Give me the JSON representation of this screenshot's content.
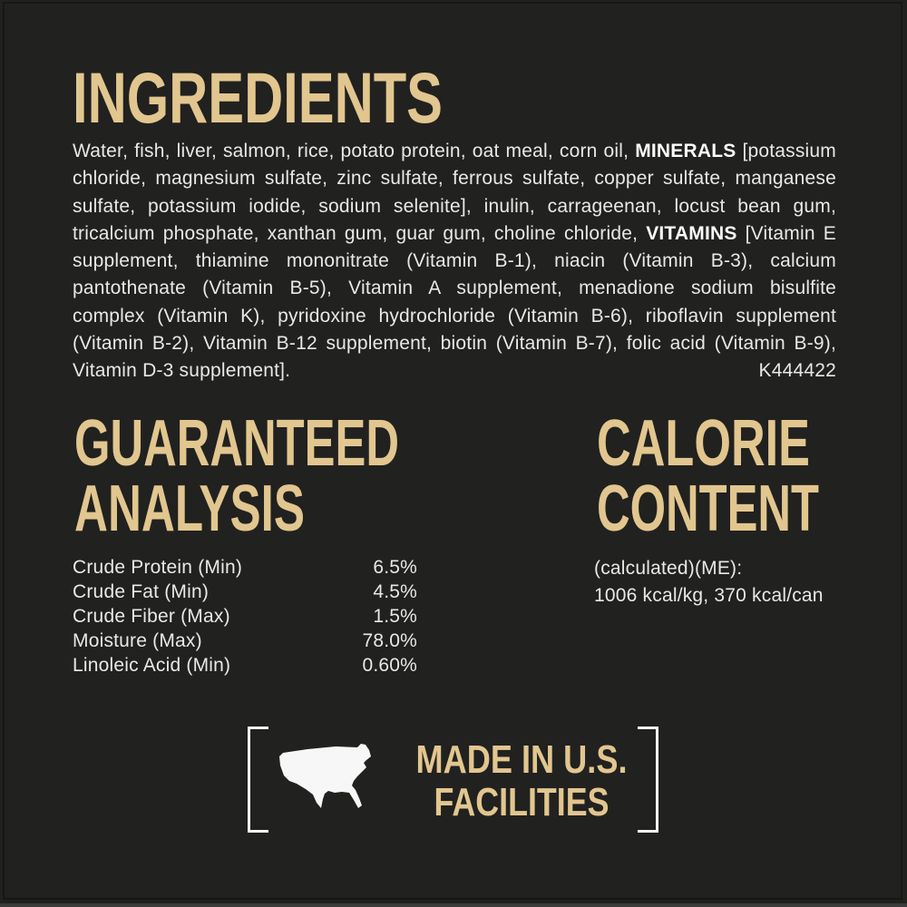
{
  "page": {
    "background_color": "#212121",
    "accent_color": "#e2c68f",
    "body_text_color": "#e8e8e8",
    "white_color": "#f4f4f4"
  },
  "ingredients": {
    "title": "INGREDIENTS",
    "lines": [
      {
        "justify": true,
        "segments": [
          {
            "t": "Water, fish, liver, salmon, rice, potato protein, oat meal, corn oil, ",
            "b": false
          },
          {
            "t": "MINERALS",
            "b": true
          },
          {
            "t": " [potassium",
            "b": false
          }
        ]
      },
      {
        "justify": true,
        "segments": [
          {
            "t": "chloride, magnesium sulfate, zinc sulfate, ferrous sulfate, copper sulfate, manganese",
            "b": false
          }
        ]
      },
      {
        "justify": true,
        "segments": [
          {
            "t": "sulfate, potassium iodide, sodium selenite], inulin, carrageenan, locust bean gum,",
            "b": false
          }
        ]
      },
      {
        "justify": true,
        "segments": [
          {
            "t": "tricalcium phosphate, xanthan gum, guar gum, choline chloride, ",
            "b": false
          },
          {
            "t": "VITAMINS",
            "b": true
          },
          {
            "t": " [Vitamin E",
            "b": false
          }
        ]
      },
      {
        "justify": true,
        "segments": [
          {
            "t": "supplement, thiamine mononitrate (Vitamin B-1), niacin (Vitamin B-3), calcium",
            "b": false
          }
        ]
      },
      {
        "justify": true,
        "segments": [
          {
            "t": "pantothenate (Vitamin B-5), Vitamin A supplement, menadione sodium bisulfite",
            "b": false
          }
        ]
      },
      {
        "justify": true,
        "segments": [
          {
            "t": "complex (Vitamin K), pyridoxine hydrochloride (Vitamin B-6), riboflavin supplement",
            "b": false
          }
        ]
      },
      {
        "justify": true,
        "segments": [
          {
            "t": "(Vitamin B-2), Vitamin B-12 supplement, biotin (Vitamin B-7), folic acid (Vitamin B-9),",
            "b": false
          }
        ]
      },
      {
        "justify": false,
        "segments": [
          {
            "t": "Vitamin D-3 supplement].",
            "b": false
          }
        ],
        "right": "K444422"
      }
    ]
  },
  "guaranteed_analysis": {
    "title_line1": "GUARANTEED",
    "title_line2": "ANALYSIS",
    "rows": [
      {
        "label": "Crude Protein (Min)",
        "value": "6.5%"
      },
      {
        "label": "Crude Fat (Min)",
        "value": "4.5%"
      },
      {
        "label": "Crude Fiber (Max)",
        "value": "1.5%"
      },
      {
        "label": "Moisture (Max)",
        "value": "78.0%"
      },
      {
        "label": "Linoleic Acid (Min)",
        "value": "0.60%"
      }
    ]
  },
  "calorie_content": {
    "title_line1": "CALORIE",
    "title_line2": "CONTENT",
    "line1": "(calculated)(ME):",
    "line2": "1006 kcal/kg, 370 kcal/can"
  },
  "made_in": {
    "icon": "usa-map-icon",
    "line1": "MADE IN U.S.",
    "line2": "FACILITIES"
  }
}
